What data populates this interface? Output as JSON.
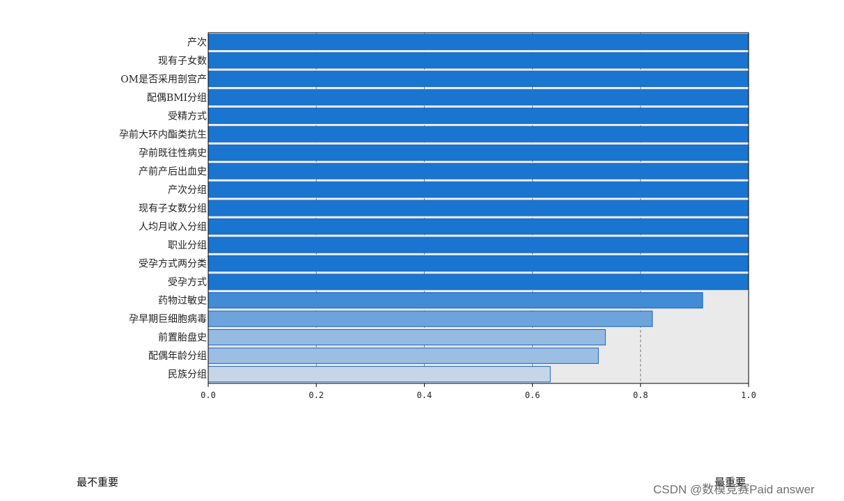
{
  "chart_data": {
    "type": "bar",
    "orientation": "horizontal",
    "categories": [
      "产次",
      "现有子女数",
      "OM是否采用剖宫产",
      "配偶BMI分组",
      "受精方式",
      "孕前大环内酯类抗生",
      "孕前既往性病史",
      "产前产后出血史",
      "产次分组",
      "现有子女数分组",
      "人均月收入分组",
      "职业分组",
      "受孕方式两分类",
      "受孕方式",
      "药物过敏史",
      "孕早期巨细胞病毒",
      "前置胎盘史",
      "配偶年龄分组",
      "民族分组"
    ],
    "values": [
      1.0,
      1.0,
      1.0,
      1.0,
      1.0,
      1.0,
      1.0,
      1.0,
      1.0,
      1.0,
      1.0,
      1.0,
      1.0,
      1.0,
      0.915,
      0.822,
      0.735,
      0.722,
      0.633
    ],
    "xlim": [
      0,
      1
    ],
    "xticks": [
      "0.0",
      "0.2",
      "0.4",
      "0.6",
      "0.8",
      "1.0"
    ],
    "grid": "vertical dashed",
    "colors": {
      "high": "#1a75d1",
      "low": "#c6d6e8",
      "plot_background": "#eaeaea",
      "grid": "#7a7a7a"
    }
  },
  "legend": {
    "least_important": "最不重要",
    "most_important": "最重要"
  },
  "watermark": "CSDN @数模竞赛Paid answer"
}
